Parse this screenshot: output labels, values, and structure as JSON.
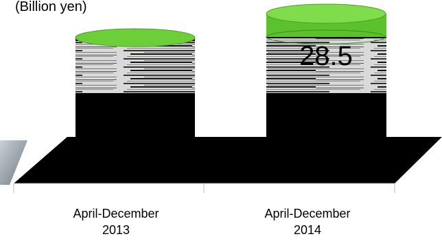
{
  "chart_data": {
    "type": "bar",
    "unit_label": "(Billion yen)",
    "categories": [
      {
        "line1": "April-December",
        "line2": "2013"
      },
      {
        "line1": "April-December",
        "line2": "2014"
      }
    ],
    "data_labels": [
      "",
      "28.5"
    ],
    "legend": "none",
    "grid": false,
    "colors": {
      "bar_top": "#6ccf3a",
      "bar_rim": "#4e9e2a",
      "bar_body": "#000000",
      "floor": "#000000",
      "wall_left": "#9aa4ae"
    }
  }
}
